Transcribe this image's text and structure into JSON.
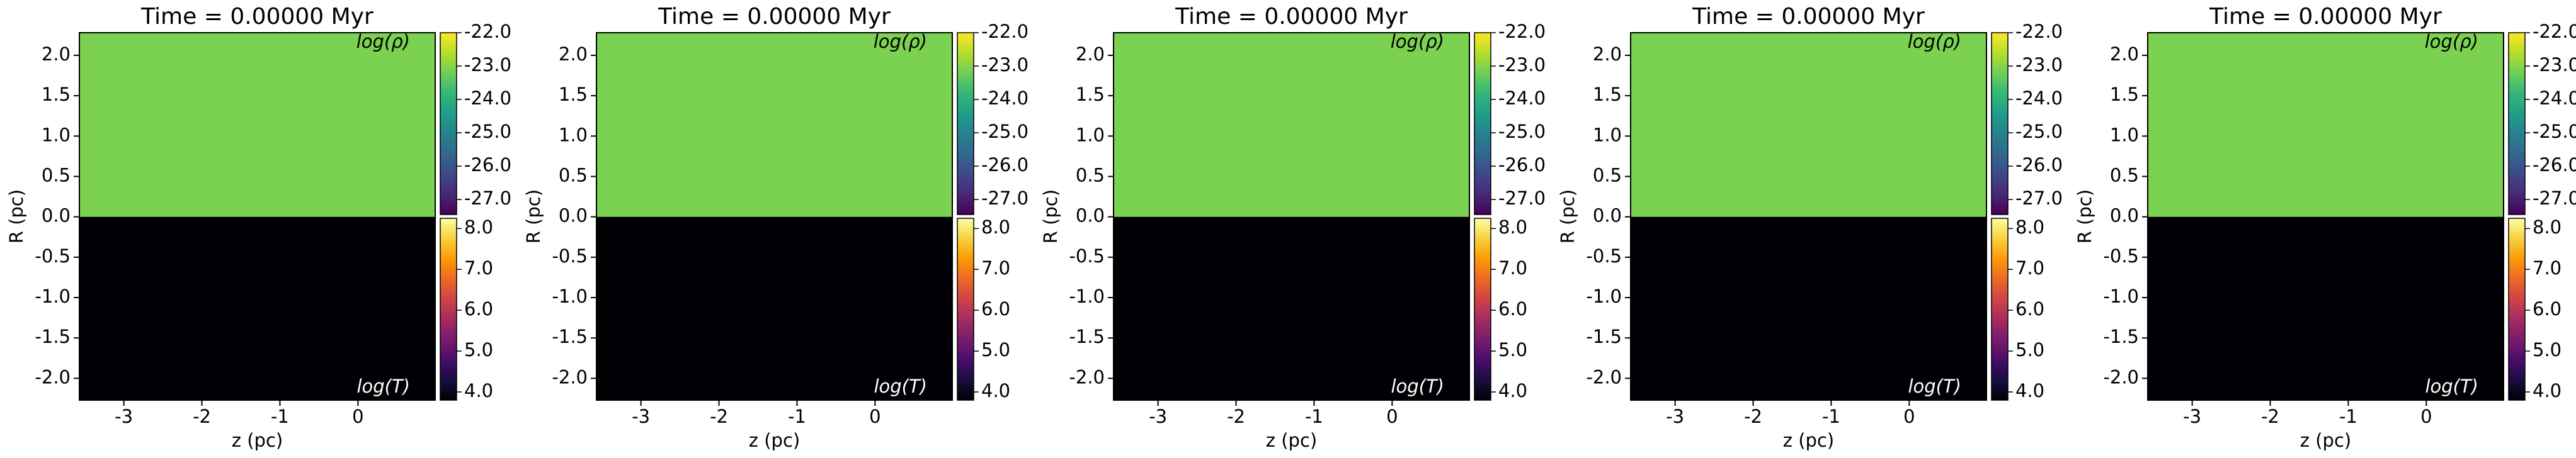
{
  "chart_data": [
    {
      "type": "heatmap",
      "title": "Time = 0.00000 Myr",
      "xlabel": "z (pc)",
      "ylabel": "R (pc)",
      "xlim": [
        -3.57,
        0.99
      ],
      "ylim": [
        -2.27,
        2.28
      ],
      "xticks": [
        -3,
        -2,
        -1,
        0
      ],
      "yticks": [
        {
          "value": -2,
          "label": "-2.0"
        },
        {
          "value": -1.5,
          "label": "-1.5"
        },
        {
          "value": -1,
          "label": "-1.0"
        },
        {
          "value": -0.5,
          "label": "-0.5"
        },
        {
          "value": 0,
          "label": "0.0"
        },
        {
          "value": 0.5,
          "label": "0.5"
        },
        {
          "value": 1,
          "label": "1.0"
        },
        {
          "value": 1.5,
          "label": "1.5"
        },
        {
          "value": 2,
          "label": "2.0"
        }
      ],
      "split": 0,
      "regions": [
        {
          "label": "log(ρ)",
          "value": -23.1,
          "cmap": "viridis",
          "clim": [
            -27.45,
            -22
          ],
          "cticks": [
            {
              "value": -27,
              "label": "-27.0"
            },
            {
              "value": -26,
              "label": "-26.0"
            },
            {
              "value": -25,
              "label": "-25.0"
            },
            {
              "value": -24,
              "label": "-24.0"
            },
            {
              "value": -23,
              "label": "-23.0"
            },
            {
              "value": -22,
              "label": "-22.0"
            }
          ]
        },
        {
          "label": "log(T)",
          "value": 3.8,
          "cmap": "inferno",
          "clim": [
            3.8,
            8.25
          ],
          "cticks": [
            {
              "value": 4,
              "label": "4.0"
            },
            {
              "value": 5,
              "label": "5.0"
            },
            {
              "value": 6,
              "label": "6.0"
            },
            {
              "value": 7,
              "label": "7.0"
            },
            {
              "value": 8,
              "label": "8.0"
            }
          ]
        }
      ]
    },
    {
      "type": "heatmap",
      "title": "Time = 0.00000 Myr",
      "xlabel": "z (pc)",
      "ylabel": "R (pc)",
      "xlim": [
        -3.57,
        0.99
      ],
      "ylim": [
        -2.27,
        2.28
      ],
      "xticks": [
        -3,
        -2,
        -1,
        0
      ],
      "yticks": [
        {
          "value": -2,
          "label": "-2.0"
        },
        {
          "value": -1.5,
          "label": "-1.5"
        },
        {
          "value": -1,
          "label": "-1.0"
        },
        {
          "value": -0.5,
          "label": "-0.5"
        },
        {
          "value": 0,
          "label": "0.0"
        },
        {
          "value": 0.5,
          "label": "0.5"
        },
        {
          "value": 1,
          "label": "1.0"
        },
        {
          "value": 1.5,
          "label": "1.5"
        },
        {
          "value": 2,
          "label": "2.0"
        }
      ],
      "split": 0,
      "regions": [
        {
          "label": "log(ρ)",
          "value": -23.1,
          "cmap": "viridis",
          "clim": [
            -27.45,
            -22
          ],
          "cticks": [
            {
              "value": -27,
              "label": "-27.0"
            },
            {
              "value": -26,
              "label": "-26.0"
            },
            {
              "value": -25,
              "label": "-25.0"
            },
            {
              "value": -24,
              "label": "-24.0"
            },
            {
              "value": -23,
              "label": "-23.0"
            },
            {
              "value": -22,
              "label": "-22.0"
            }
          ]
        },
        {
          "label": "log(T)",
          "value": 3.8,
          "cmap": "inferno",
          "clim": [
            3.8,
            8.25
          ],
          "cticks": [
            {
              "value": 4,
              "label": "4.0"
            },
            {
              "value": 5,
              "label": "5.0"
            },
            {
              "value": 6,
              "label": "6.0"
            },
            {
              "value": 7,
              "label": "7.0"
            },
            {
              "value": 8,
              "label": "8.0"
            }
          ]
        }
      ]
    },
    {
      "type": "heatmap",
      "title": "Time = 0.00000 Myr",
      "xlabel": "z (pc)",
      "ylabel": "R (pc)",
      "xlim": [
        -3.57,
        0.99
      ],
      "ylim": [
        -2.27,
        2.28
      ],
      "xticks": [
        -3,
        -2,
        -1,
        0
      ],
      "yticks": [
        {
          "value": -2,
          "label": "-2.0"
        },
        {
          "value": -1.5,
          "label": "-1.5"
        },
        {
          "value": -1,
          "label": "-1.0"
        },
        {
          "value": -0.5,
          "label": "-0.5"
        },
        {
          "value": 0,
          "label": "0.0"
        },
        {
          "value": 0.5,
          "label": "0.5"
        },
        {
          "value": 1,
          "label": "1.0"
        },
        {
          "value": 1.5,
          "label": "1.5"
        },
        {
          "value": 2,
          "label": "2.0"
        }
      ],
      "split": 0,
      "regions": [
        {
          "label": "log(ρ)",
          "value": -23.1,
          "cmap": "viridis",
          "clim": [
            -27.45,
            -22
          ],
          "cticks": [
            {
              "value": -27,
              "label": "-27.0"
            },
            {
              "value": -26,
              "label": "-26.0"
            },
            {
              "value": -25,
              "label": "-25.0"
            },
            {
              "value": -24,
              "label": "-24.0"
            },
            {
              "value": -23,
              "label": "-23.0"
            },
            {
              "value": -22,
              "label": "-22.0"
            }
          ]
        },
        {
          "label": "log(T)",
          "value": 3.8,
          "cmap": "inferno",
          "clim": [
            3.8,
            8.25
          ],
          "cticks": [
            {
              "value": 4,
              "label": "4.0"
            },
            {
              "value": 5,
              "label": "5.0"
            },
            {
              "value": 6,
              "label": "6.0"
            },
            {
              "value": 7,
              "label": "7.0"
            },
            {
              "value": 8,
              "label": "8.0"
            }
          ]
        }
      ]
    },
    {
      "type": "heatmap",
      "title": "Time = 0.00000 Myr",
      "xlabel": "z (pc)",
      "ylabel": "R (pc)",
      "xlim": [
        -3.57,
        0.99
      ],
      "ylim": [
        -2.27,
        2.28
      ],
      "xticks": [
        -3,
        -2,
        -1,
        0
      ],
      "yticks": [
        {
          "value": -2,
          "label": "-2.0"
        },
        {
          "value": -1.5,
          "label": "-1.5"
        },
        {
          "value": -1,
          "label": "-1.0"
        },
        {
          "value": -0.5,
          "label": "-0.5"
        },
        {
          "value": 0,
          "label": "0.0"
        },
        {
          "value": 0.5,
          "label": "0.5"
        },
        {
          "value": 1,
          "label": "1.0"
        },
        {
          "value": 1.5,
          "label": "1.5"
        },
        {
          "value": 2,
          "label": "2.0"
        }
      ],
      "split": 0,
      "regions": [
        {
          "label": "log(ρ)",
          "value": -23.1,
          "cmap": "viridis",
          "clim": [
            -27.45,
            -22
          ],
          "cticks": [
            {
              "value": -27,
              "label": "-27.0"
            },
            {
              "value": -26,
              "label": "-26.0"
            },
            {
              "value": -25,
              "label": "-25.0"
            },
            {
              "value": -24,
              "label": "-24.0"
            },
            {
              "value": -23,
              "label": "-23.0"
            },
            {
              "value": -22,
              "label": "-22.0"
            }
          ]
        },
        {
          "label": "log(T)",
          "value": 3.8,
          "cmap": "inferno",
          "clim": [
            3.8,
            8.25
          ],
          "cticks": [
            {
              "value": 4,
              "label": "4.0"
            },
            {
              "value": 5,
              "label": "5.0"
            },
            {
              "value": 6,
              "label": "6.0"
            },
            {
              "value": 7,
              "label": "7.0"
            },
            {
              "value": 8,
              "label": "8.0"
            }
          ]
        }
      ]
    },
    {
      "type": "heatmap",
      "title": "Time = 0.00000 Myr",
      "xlabel": "z (pc)",
      "ylabel": "R (pc)",
      "xlim": [
        -3.57,
        0.99
      ],
      "ylim": [
        -2.27,
        2.28
      ],
      "xticks": [
        -3,
        -2,
        -1,
        0
      ],
      "yticks": [
        {
          "value": -2,
          "label": "-2.0"
        },
        {
          "value": -1.5,
          "label": "-1.5"
        },
        {
          "value": -1,
          "label": "-1.0"
        },
        {
          "value": -0.5,
          "label": "-0.5"
        },
        {
          "value": 0,
          "label": "0.0"
        },
        {
          "value": 0.5,
          "label": "0.5"
        },
        {
          "value": 1,
          "label": "1.0"
        },
        {
          "value": 1.5,
          "label": "1.5"
        },
        {
          "value": 2,
          "label": "2.0"
        }
      ],
      "split": 0,
      "regions": [
        {
          "label": "log(ρ)",
          "value": -23.1,
          "cmap": "viridis",
          "clim": [
            -27.45,
            -22
          ],
          "cticks": [
            {
              "value": -27,
              "label": "-27.0"
            },
            {
              "value": -26,
              "label": "-26.0"
            },
            {
              "value": -25,
              "label": "-25.0"
            },
            {
              "value": -24,
              "label": "-24.0"
            },
            {
              "value": -23,
              "label": "-23.0"
            },
            {
              "value": -22,
              "label": "-22.0"
            }
          ]
        },
        {
          "label": "log(T)",
          "value": 3.8,
          "cmap": "inferno",
          "clim": [
            3.8,
            8.25
          ],
          "cticks": [
            {
              "value": 4,
              "label": "4.0"
            },
            {
              "value": 5,
              "label": "5.0"
            },
            {
              "value": 6,
              "label": "6.0"
            },
            {
              "value": 7,
              "label": "7.0"
            },
            {
              "value": 8,
              "label": "8.0"
            }
          ]
        }
      ]
    }
  ]
}
